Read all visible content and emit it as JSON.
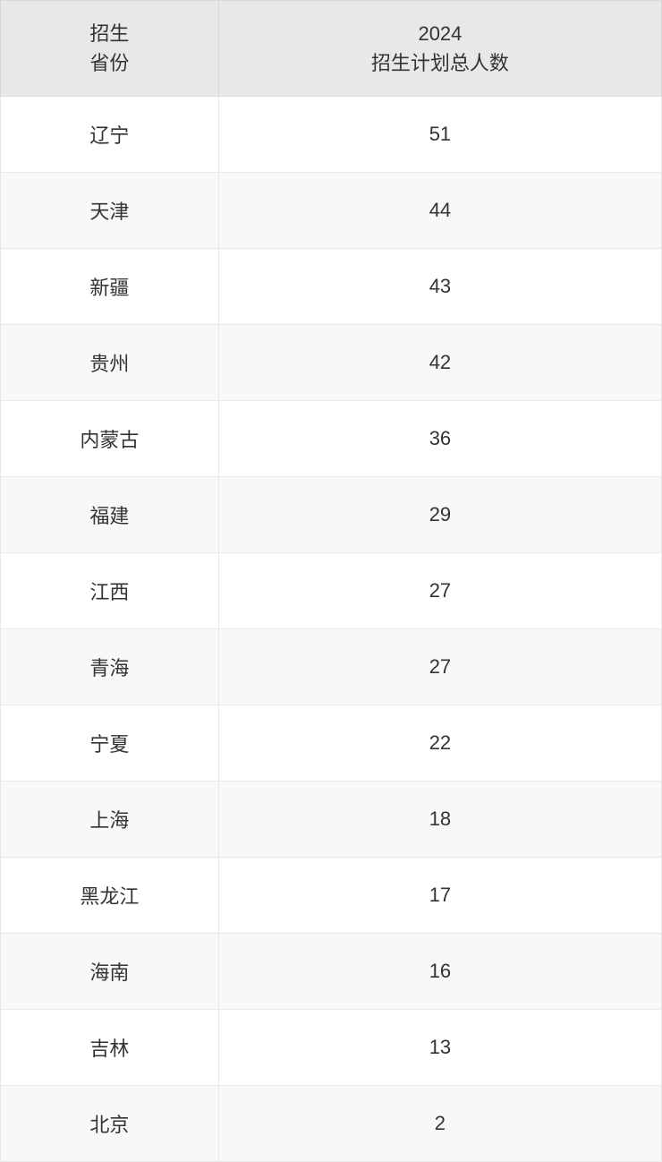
{
  "table": {
    "type": "table",
    "header_bg_color": "#e8e8e8",
    "row_odd_bg_color": "#ffffff",
    "row_even_bg_color": "#f8f8f8",
    "border_color": "#e8e8e8",
    "text_color": "#333333",
    "font_size": 22,
    "columns": [
      {
        "label_line1": "招生",
        "label_line2": "省份",
        "width_percent": 33,
        "align": "center"
      },
      {
        "label_line1": "2024",
        "label_line2": "招生计划总人数",
        "width_percent": 67,
        "align": "center"
      }
    ],
    "rows": [
      {
        "province": "辽宁",
        "count": "51"
      },
      {
        "province": "天津",
        "count": "44"
      },
      {
        "province": "新疆",
        "count": "43"
      },
      {
        "province": "贵州",
        "count": "42"
      },
      {
        "province": "内蒙古",
        "count": "36"
      },
      {
        "province": "福建",
        "count": "29"
      },
      {
        "province": "江西",
        "count": "27"
      },
      {
        "province": "青海",
        "count": "27"
      },
      {
        "province": "宁夏",
        "count": "22"
      },
      {
        "province": "上海",
        "count": "18"
      },
      {
        "province": "黑龙江",
        "count": "17"
      },
      {
        "province": "海南",
        "count": "16"
      },
      {
        "province": "吉林",
        "count": "13"
      },
      {
        "province": "北京",
        "count": "2"
      }
    ]
  }
}
